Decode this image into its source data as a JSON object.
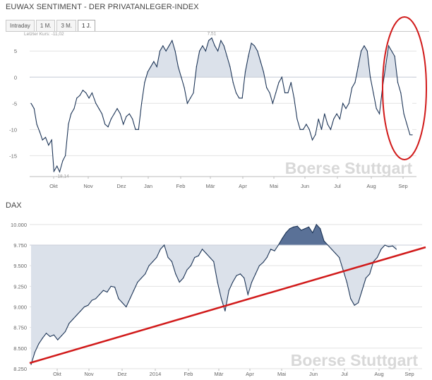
{
  "header": {
    "title": "EUWAX SENTIMENT - DER PRIVATANLEGER-INDEX",
    "tabs": [
      {
        "label": "Intraday",
        "active": false
      },
      {
        "label": "1 M.",
        "active": false
      },
      {
        "label": "3 M.",
        "active": false
      },
      {
        "label": "1 J.",
        "active": true
      }
    ]
  },
  "watermark": "Boerse Stuttgart",
  "colors": {
    "line": "#1d3557",
    "fill_light": "#dbe1ea",
    "fill_dark": "#5a7197",
    "annotation": "#d11a1a",
    "grid": "#e2e2e2"
  },
  "chart_data": [
    {
      "type": "area",
      "title": "EUWAX SENTIMENT - DER PRIVATANLEGER-INDEX",
      "baseline": 0,
      "last_value_note": "Letzter Kurs: -11,02",
      "max_label": "7,51",
      "min_label": "-18,14",
      "ylim": [
        -19,
        8
      ],
      "yticks": [
        5,
        0,
        -5,
        -10,
        -15
      ],
      "ytick_labels": [
        "5",
        "0",
        "-5",
        "-10",
        "-15"
      ],
      "xlabels": [
        "Okt",
        "Nov",
        "Dez",
        "Jan",
        "Feb",
        "Mär",
        "Apr",
        "Mai",
        "Jun",
        "Jul",
        "Aug",
        "Sep"
      ],
      "xlim": [
        0,
        100
      ],
      "series": [
        {
          "points": [
            [
              0,
              -5
            ],
            [
              0.8,
              -6
            ],
            [
              1.5,
              -9
            ],
            [
              2.3,
              -10.5
            ],
            [
              3,
              -12
            ],
            [
              3.8,
              -11.5
            ],
            [
              4.6,
              -13
            ],
            [
              5.4,
              -12
            ],
            [
              6,
              -18
            ],
            [
              6.8,
              -17
            ],
            [
              7.5,
              -18.1
            ],
            [
              8.3,
              -16
            ],
            [
              9,
              -15
            ],
            [
              9.8,
              -9
            ],
            [
              10.5,
              -7
            ],
            [
              11.3,
              -6
            ],
            [
              12,
              -4
            ],
            [
              12.8,
              -3.5
            ],
            [
              13.6,
              -2.5
            ],
            [
              14.4,
              -3
            ],
            [
              15.2,
              -4
            ],
            [
              16,
              -3
            ],
            [
              17,
              -5
            ],
            [
              17.8,
              -6
            ],
            [
              18.6,
              -7
            ],
            [
              19.4,
              -9
            ],
            [
              20.2,
              -9.5
            ],
            [
              21,
              -8
            ],
            [
              21.8,
              -7
            ],
            [
              22.6,
              -6
            ],
            [
              23.4,
              -7
            ],
            [
              24.2,
              -9
            ],
            [
              25,
              -7.5
            ],
            [
              25.8,
              -7
            ],
            [
              26.6,
              -8
            ],
            [
              27.4,
              -10
            ],
            [
              28.2,
              -10
            ],
            [
              29,
              -5
            ],
            [
              29.8,
              -1
            ],
            [
              30.6,
              1
            ],
            [
              31.4,
              2
            ],
            [
              32.2,
              3
            ],
            [
              33,
              2
            ],
            [
              33.8,
              5
            ],
            [
              34.6,
              6
            ],
            [
              35.4,
              5
            ],
            [
              36.2,
              6
            ],
            [
              37,
              7
            ],
            [
              37.8,
              5
            ],
            [
              38.6,
              2
            ],
            [
              39.4,
              0
            ],
            [
              40.2,
              -2
            ],
            [
              41,
              -5
            ],
            [
              41.8,
              -4
            ],
            [
              42.6,
              -3
            ],
            [
              43.4,
              2
            ],
            [
              44.2,
              5
            ],
            [
              45,
              6
            ],
            [
              45.8,
              5
            ],
            [
              46.6,
              7
            ],
            [
              47.4,
              7.5
            ],
            [
              48.2,
              6
            ],
            [
              49,
              5
            ],
            [
              49.8,
              7
            ],
            [
              50.6,
              6
            ],
            [
              51.4,
              4
            ],
            [
              52.2,
              2
            ],
            [
              53,
              -1
            ],
            [
              53.8,
              -3
            ],
            [
              54.6,
              -4
            ],
            [
              55.4,
              -4
            ],
            [
              56.2,
              1
            ],
            [
              57,
              4
            ],
            [
              57.8,
              6.5
            ],
            [
              58.6,
              6
            ],
            [
              59.4,
              5
            ],
            [
              60.2,
              3
            ],
            [
              61,
              1
            ],
            [
              61.8,
              -2
            ],
            [
              62.6,
              -3
            ],
            [
              63.4,
              -5
            ],
            [
              64.2,
              -3
            ],
            [
              65,
              -1
            ],
            [
              65.8,
              0
            ],
            [
              66.6,
              -3
            ],
            [
              67.4,
              -3
            ],
            [
              68.2,
              -1
            ],
            [
              69,
              -4
            ],
            [
              69.8,
              -8
            ],
            [
              70.6,
              -10
            ],
            [
              71.4,
              -10
            ],
            [
              72.2,
              -9
            ],
            [
              73,
              -10
            ],
            [
              73.8,
              -12
            ],
            [
              74.6,
              -11
            ],
            [
              75.4,
              -8
            ],
            [
              76.2,
              -10
            ],
            [
              77,
              -7
            ],
            [
              77.8,
              -9
            ],
            [
              78.6,
              -10
            ],
            [
              79.4,
              -8
            ],
            [
              80.2,
              -7
            ],
            [
              81,
              -8
            ],
            [
              81.8,
              -5
            ],
            [
              82.6,
              -6
            ],
            [
              83.4,
              -5
            ],
            [
              84.2,
              -2
            ],
            [
              85,
              -1
            ],
            [
              85.8,
              2
            ],
            [
              86.6,
              5
            ],
            [
              87.4,
              6
            ],
            [
              88.2,
              5
            ],
            [
              89,
              0
            ],
            [
              89.8,
              -3
            ],
            [
              90.6,
              -6
            ],
            [
              91.4,
              -7
            ],
            [
              92.2,
              -2
            ],
            [
              93,
              2
            ],
            [
              93.8,
              6
            ],
            [
              94.6,
              5
            ],
            [
              95.4,
              4
            ],
            [
              96.2,
              -1
            ],
            [
              97,
              -3
            ],
            [
              97.8,
              -7
            ],
            [
              98.6,
              -9
            ],
            [
              99.4,
              -11
            ],
            [
              100,
              -11.02
            ]
          ]
        }
      ]
    },
    {
      "type": "area",
      "title": "DAX",
      "baseline": 9750,
      "ylim": [
        8250,
        10050
      ],
      "yticks": [
        10000,
        9750,
        9500,
        9250,
        9000,
        8750,
        8500,
        8250
      ],
      "ytick_labels": [
        "10.000",
        "9.750",
        "9.500",
        "9.250",
        "9.000",
        "8.750",
        "8.500",
        "8.250"
      ],
      "xlabels": [
        "Okt",
        "Nov",
        "Dez",
        "2014",
        "Feb",
        "Mär",
        "Apr",
        "Mai",
        "Jun",
        "Jul",
        "Aug",
        "Sep"
      ],
      "xlim": [
        0,
        100
      ],
      "series": [
        {
          "points": [
            [
              0,
              8300
            ],
            [
              1,
              8450
            ],
            [
              2,
              8550
            ],
            [
              3,
              8620
            ],
            [
              4,
              8680
            ],
            [
              5,
              8640
            ],
            [
              6,
              8660
            ],
            [
              7,
              8600
            ],
            [
              8,
              8650
            ],
            [
              9,
              8700
            ],
            [
              10,
              8800
            ],
            [
              11,
              8850
            ],
            [
              12,
              8900
            ],
            [
              13,
              8950
            ],
            [
              14,
              9000
            ],
            [
              15,
              9020
            ],
            [
              16,
              9080
            ],
            [
              17,
              9100
            ],
            [
              18,
              9150
            ],
            [
              19,
              9200
            ],
            [
              20,
              9180
            ],
            [
              21,
              9250
            ],
            [
              22,
              9240
            ],
            [
              23,
              9100
            ],
            [
              24,
              9050
            ],
            [
              25,
              9000
            ],
            [
              26,
              9100
            ],
            [
              27,
              9200
            ],
            [
              28,
              9300
            ],
            [
              29,
              9350
            ],
            [
              30,
              9400
            ],
            [
              31,
              9500
            ],
            [
              32,
              9550
            ],
            [
              33,
              9600
            ],
            [
              34,
              9700
            ],
            [
              35,
              9750
            ],
            [
              36,
              9600
            ],
            [
              37,
              9550
            ],
            [
              38,
              9400
            ],
            [
              39,
              9300
            ],
            [
              40,
              9350
            ],
            [
              41,
              9450
            ],
            [
              42,
              9500
            ],
            [
              43,
              9600
            ],
            [
              44,
              9620
            ],
            [
              45,
              9700
            ],
            [
              46,
              9650
            ],
            [
              47,
              9600
            ],
            [
              48,
              9550
            ],
            [
              49,
              9300
            ],
            [
              50,
              9100
            ],
            [
              51,
              8950
            ],
            [
              52,
              9200
            ],
            [
              53,
              9300
            ],
            [
              54,
              9380
            ],
            [
              55,
              9400
            ],
            [
              56,
              9350
            ],
            [
              57,
              9150
            ],
            [
              58,
              9300
            ],
            [
              59,
              9400
            ],
            [
              60,
              9500
            ],
            [
              61,
              9540
            ],
            [
              62,
              9600
            ],
            [
              63,
              9700
            ],
            [
              64,
              9680
            ],
            [
              65,
              9750
            ],
            [
              66,
              9830
            ],
            [
              67,
              9900
            ],
            [
              68,
              9950
            ],
            [
              69,
              9970
            ],
            [
              70,
              9980
            ],
            [
              71,
              9930
            ],
            [
              72,
              9950
            ],
            [
              73,
              9970
            ],
            [
              74,
              9900
            ],
            [
              75,
              10000
            ],
            [
              76,
              9950
            ],
            [
              77,
              9800
            ],
            [
              78,
              9750
            ],
            [
              79,
              9700
            ],
            [
              80,
              9650
            ],
            [
              81,
              9600
            ],
            [
              82,
              9450
            ],
            [
              83,
              9300
            ],
            [
              84,
              9100
            ],
            [
              85,
              9020
            ],
            [
              86,
              9050
            ],
            [
              87,
              9200
            ],
            [
              88,
              9350
            ],
            [
              89,
              9400
            ],
            [
              90,
              9550
            ],
            [
              91,
              9600
            ],
            [
              92,
              9700
            ],
            [
              93,
              9750
            ],
            [
              94,
              9730
            ],
            [
              95,
              9740
            ],
            [
              96,
              9700
            ]
          ]
        }
      ]
    }
  ]
}
